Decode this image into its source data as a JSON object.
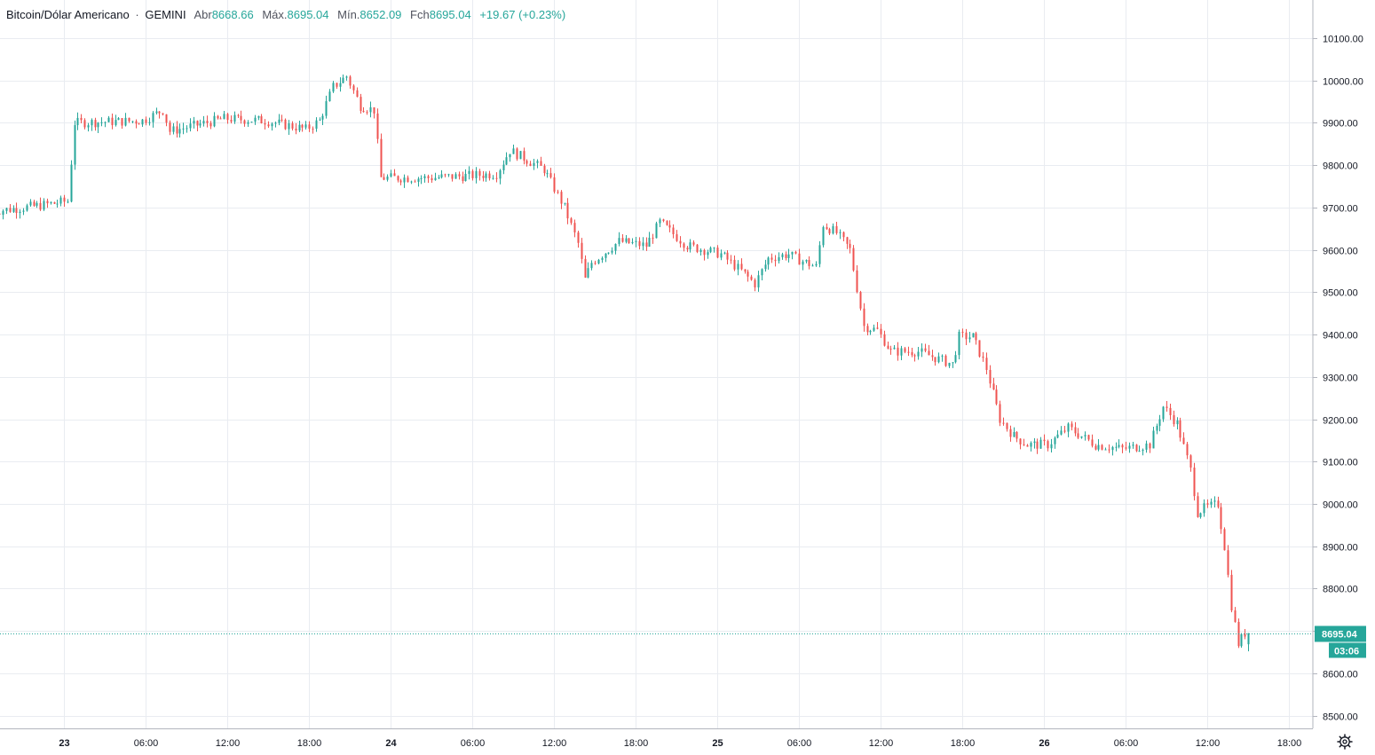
{
  "header": {
    "symbol": "Bitcoin/Dólar Americano",
    "separator": "·",
    "exchange": "GEMINI",
    "open_label": "Abr",
    "open_value": "8668.66",
    "high_label": "Máx.",
    "high_value": "8695.04",
    "low_label": "Mín.",
    "low_value": "8652.09",
    "close_label": "Fch",
    "close_value": "8695.04",
    "change": "+19.67 (+0.23%)"
  },
  "price_axis": {
    "ticks": [
      "10100.00",
      "10000.00",
      "9900.00",
      "9800.00",
      "9700.00",
      "9600.00",
      "9500.00",
      "9400.00",
      "9300.00",
      "9200.00",
      "9100.00",
      "9000.00",
      "8900.00",
      "8800.00",
      "8700.00",
      "8600.00",
      "8500.00"
    ]
  },
  "time_axis": {
    "ticks": [
      "23",
      "06:00",
      "12:00",
      "18:00",
      "24",
      "06:00",
      "12:00",
      "18:00",
      "25",
      "06:00",
      "12:00",
      "18:00",
      "26",
      "06:00",
      "12:00",
      "18:00"
    ]
  },
  "last_price": {
    "price": "8695.04",
    "countdown": "03:06"
  },
  "colors": {
    "up": "#26a69a",
    "down": "#ef5350",
    "grid": "#e9ecf1",
    "axis_text": "#131722",
    "last_line": "#26a69a"
  },
  "icons": {
    "settings": "gear-icon"
  },
  "chart_data": {
    "type": "candlestick",
    "title": "Bitcoin/Dólar Americano · GEMINI",
    "interval_minutes": 15,
    "y_range": [
      8470,
      10190
    ],
    "grid": true,
    "price_waypoints": [
      [
        "22 18:45",
        9690
      ],
      [
        "22 22:30",
        9705
      ],
      [
        "23 00:30",
        9715
      ],
      [
        "23 01:00",
        9900
      ],
      [
        "23 06:00",
        9905
      ],
      [
        "23 07:30",
        9930
      ],
      [
        "23 08:00",
        9880
      ],
      [
        "23 12:00",
        9910
      ],
      [
        "23 15:00",
        9905
      ],
      [
        "23 18:00",
        9885
      ],
      [
        "23 19:00",
        9905
      ],
      [
        "23 20:00",
        9985
      ],
      [
        "23 21:00",
        10010
      ],
      [
        "23 22:00",
        9940
      ],
      [
        "23 23:00",
        9930
      ],
      [
        "23 23:30",
        9770
      ],
      [
        "24 03:00",
        9770
      ],
      [
        "24 06:00",
        9775
      ],
      [
        "24 08:00",
        9780
      ],
      [
        "24 09:00",
        9835
      ],
      [
        "24 11:30",
        9790
      ],
      [
        "24 13:00",
        9700
      ],
      [
        "24 14:00",
        9615
      ],
      [
        "24 14:30",
        9530
      ],
      [
        "24 15:00",
        9570
      ],
      [
        "24 17:00",
        9620
      ],
      [
        "24 19:00",
        9610
      ],
      [
        "24 20:00",
        9665
      ],
      [
        "24 22:00",
        9610
      ],
      [
        "25 00:30",
        9590
      ],
      [
        "25 02:00",
        9550
      ],
      [
        "25 03:00",
        9520
      ],
      [
        "25 04:00",
        9580
      ],
      [
        "25 05:30",
        9590
      ],
      [
        "25 06:00",
        9580
      ],
      [
        "25 07:30",
        9560
      ],
      [
        "25 08:00",
        9660
      ],
      [
        "25 09:00",
        9640
      ],
      [
        "25 10:00",
        9600
      ],
      [
        "25 11:00",
        9420
      ],
      [
        "25 12:00",
        9410
      ],
      [
        "25 13:00",
        9360
      ],
      [
        "25 15:00",
        9360
      ],
      [
        "25 17:30",
        9330
      ],
      [
        "25 18:00",
        9395
      ],
      [
        "25 19:00",
        9395
      ],
      [
        "25 20:00",
        9320
      ],
      [
        "25 21:00",
        9200
      ],
      [
        "25 22:00",
        9160
      ],
      [
        "25 23:00",
        9140
      ],
      [
        "26 00:30",
        9140
      ],
      [
        "26 02:00",
        9180
      ],
      [
        "26 03:00",
        9160
      ],
      [
        "26 04:00",
        9140
      ],
      [
        "26 06:00",
        9130
      ],
      [
        "26 07:00",
        9135
      ],
      [
        "26 08:00",
        9140
      ],
      [
        "26 09:00",
        9230
      ],
      [
        "26 10:00",
        9190
      ],
      [
        "26 11:00",
        9080
      ],
      [
        "26 11:30",
        8980
      ],
      [
        "26 12:00",
        8990
      ],
      [
        "26 13:00",
        9000
      ],
      [
        "26 13:30",
        8900
      ],
      [
        "26 14:00",
        8760
      ],
      [
        "26 14:30",
        8670
      ],
      [
        "26 15:00",
        8695.04
      ]
    ]
  }
}
